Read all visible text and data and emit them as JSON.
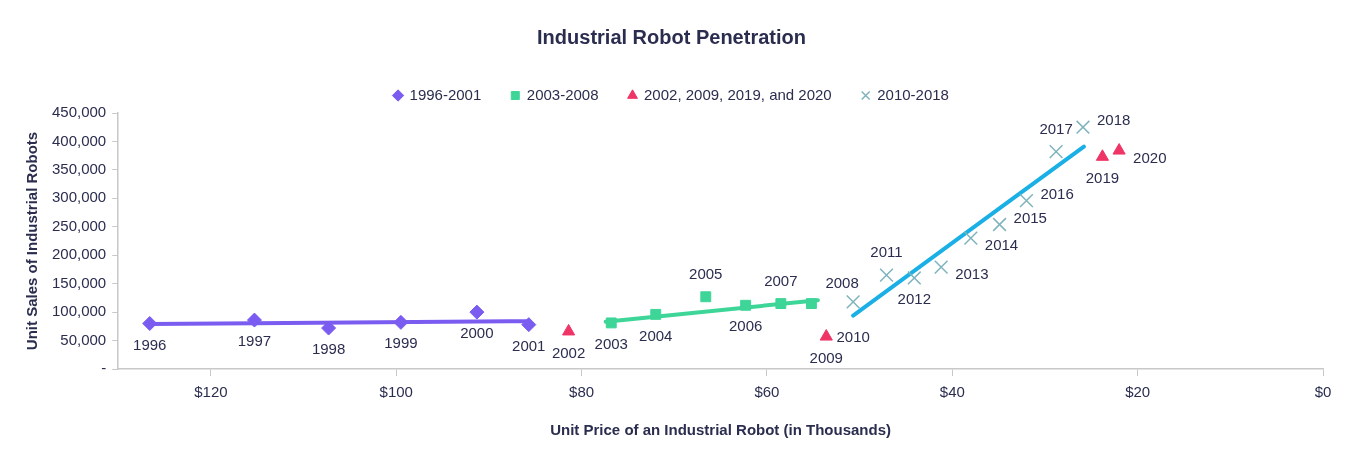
{
  "chart_data": {
    "type": "scatter",
    "title": "Industrial Robot Penetration",
    "xlabel": "Unit Price of an Industrial Robot (in Thousands)",
    "ylabel": "Unit Sales of Industrial Robots",
    "xlim": [
      130,
      0
    ],
    "xticks": [
      {
        "value": 120,
        "label": "$120"
      },
      {
        "value": 100,
        "label": "$100"
      },
      {
        "value": 80,
        "label": "$80"
      },
      {
        "value": 60,
        "label": "$60"
      },
      {
        "value": 40,
        "label": "$40"
      },
      {
        "value": 20,
        "label": "$20"
      },
      {
        "value": 0,
        "label": "$0"
      }
    ],
    "ylim": [
      0,
      450000
    ],
    "yticks": [
      {
        "value": 0,
        "label": "-"
      },
      {
        "value": 50000,
        "label": "50,000"
      },
      {
        "value": 100000,
        "label": "100,000"
      },
      {
        "value": 150000,
        "label": "150,000"
      },
      {
        "value": 200000,
        "label": "200,000"
      },
      {
        "value": 250000,
        "label": "250,000"
      },
      {
        "value": 300000,
        "label": "300,000"
      },
      {
        "value": 350000,
        "label": "350,000"
      },
      {
        "value": 400000,
        "label": "400,000"
      },
      {
        "value": 450000,
        "label": "450,000"
      }
    ],
    "grid": false,
    "legend": "top",
    "series": [
      {
        "name": "1996-2001",
        "marker": "diamond",
        "color": "#7b5cf0",
        "x": [
          126.6,
          115.3,
          107.3,
          99.5,
          91.3,
          85.7
        ],
        "values": [
          80000,
          86000,
          72000,
          82000,
          100000,
          78000
        ]
      },
      {
        "name": "2003-2008",
        "marker": "square",
        "color": "#3ed598",
        "x": [
          76.8,
          72.0,
          66.6,
          62.3,
          58.5,
          55.2
        ],
        "values": [
          81000,
          96000,
          127000,
          112000,
          115000,
          115000
        ]
      },
      {
        "name": "2002, 2009, 2019, and 2020",
        "marker": "triangle",
        "color": "#ef3466",
        "x": [
          81.4,
          53.6,
          23.8,
          22.0
        ],
        "values": [
          66000,
          57000,
          373000,
          384000
        ]
      },
      {
        "name": "2010-2018",
        "marker": "cross",
        "color": "#7fb3bd",
        "x": [
          50.7,
          47.1,
          44.1,
          41.2,
          38.0,
          34.9,
          32.0,
          28.8,
          25.9
        ],
        "values": [
          118000,
          165000,
          160000,
          179000,
          230000,
          254000,
          296000,
          382000,
          425000
        ]
      },
      {
        "type": "line",
        "color": "#7b5cf0",
        "x": [
          126.6,
          85.7
        ],
        "values": [
          79000,
          84000
        ]
      },
      {
        "type": "line",
        "color": "#3ed598",
        "x": [
          77.4,
          54.5
        ],
        "values": [
          83000,
          121000
        ]
      },
      {
        "type": "line",
        "color": "#1ab0e6",
        "x": [
          50.7,
          25.8
        ],
        "values": [
          94000,
          391000
        ]
      }
    ],
    "annotations": [
      {
        "text": "1996",
        "x": 126.6,
        "y": 80000
      },
      {
        "text": "1997",
        "x": 115.3,
        "y": 86000
      },
      {
        "text": "1998",
        "x": 107.3,
        "y": 72000
      },
      {
        "text": "1999",
        "x": 99.5,
        "y": 82000
      },
      {
        "text": "2000",
        "x": 91.3,
        "y": 100000
      },
      {
        "text": "2001",
        "x": 85.7,
        "y": 78000
      },
      {
        "text": "2002",
        "x": 81.4,
        "y": 66000
      },
      {
        "text": "2003",
        "x": 76.8,
        "y": 81000
      },
      {
        "text": "2004",
        "x": 72.0,
        "y": 96000
      },
      {
        "text": "2005",
        "x": 66.6,
        "y": 127000
      },
      {
        "text": "2006",
        "x": 62.3,
        "y": 112000
      },
      {
        "text": "2007",
        "x": 58.5,
        "y": 115000
      },
      {
        "text": "2008",
        "x": 55.2,
        "y": 115000
      },
      {
        "text": "2009",
        "x": 53.6,
        "y": 57000
      },
      {
        "text": "2010",
        "x": 50.7,
        "y": 118000
      },
      {
        "text": "2011",
        "x": 47.1,
        "y": 165000
      },
      {
        "text": "2012",
        "x": 44.1,
        "y": 160000
      },
      {
        "text": "2013",
        "x": 41.2,
        "y": 179000
      },
      {
        "text": "2014",
        "x": 38.0,
        "y": 230000
      },
      {
        "text": "2015",
        "x": 34.9,
        "y": 254000
      },
      {
        "text": "2016",
        "x": 32.0,
        "y": 296000
      },
      {
        "text": "2017",
        "x": 28.8,
        "y": 382000
      },
      {
        "text": "2018",
        "x": 25.9,
        "y": 425000
      },
      {
        "text": "2019",
        "x": 23.8,
        "y": 373000
      },
      {
        "text": "2020",
        "x": 22.0,
        "y": 384000
      }
    ]
  }
}
